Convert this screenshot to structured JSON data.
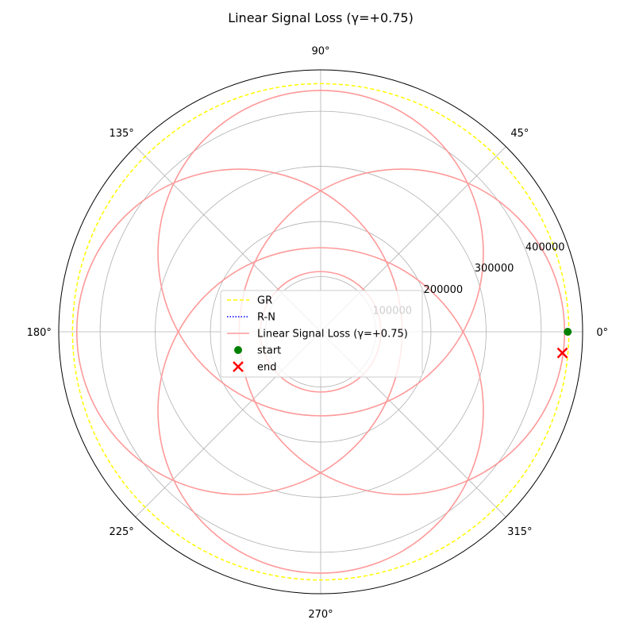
{
  "chart_data": {
    "type": "polar-line",
    "title": "Linear Signal Loss (γ=+0.75)",
    "angle_ticks": [
      {
        "deg": 0,
        "label": "0°"
      },
      {
        "deg": 45,
        "label": "45°"
      },
      {
        "deg": 90,
        "label": "90°"
      },
      {
        "deg": 135,
        "label": "135°"
      },
      {
        "deg": 180,
        "label": "180°"
      },
      {
        "deg": 225,
        "label": "225°"
      },
      {
        "deg": 270,
        "label": "270°"
      },
      {
        "deg": 315,
        "label": "315°"
      }
    ],
    "radial_ticks": [
      {
        "value": 100000,
        "label": "100000"
      },
      {
        "value": 200000,
        "label": "200000"
      },
      {
        "value": 300000,
        "label": "300000"
      },
      {
        "value": 400000,
        "label": "400000"
      }
    ],
    "rlim": [
      0,
      475000
    ],
    "grid": true,
    "legend_position": "center",
    "series": [
      {
        "name": "GR",
        "color": "#ffff00",
        "style": "dashed",
        "kind": "circle",
        "radius": 450000
      },
      {
        "name": "R-N",
        "color": "#0000ff",
        "style": "dotted",
        "kind": "none"
      },
      {
        "name": "Linear Signal Loss (γ=+0.75)",
        "color": "#ff9999",
        "style": "solid",
        "kind": "rosette",
        "outer_radius": 450000,
        "inner_radius": 140000,
        "offset_circle_radius": 295000,
        "start_angle_deg": 0,
        "end_angle_deg": -5
      }
    ],
    "markers": [
      {
        "name": "start",
        "color": "#008000",
        "shape": "circle",
        "r": 448000,
        "theta_deg": 0
      },
      {
        "name": "end",
        "color": "#ff0000",
        "shape": "x",
        "r": 440000,
        "theta_deg": -5
      }
    ]
  }
}
